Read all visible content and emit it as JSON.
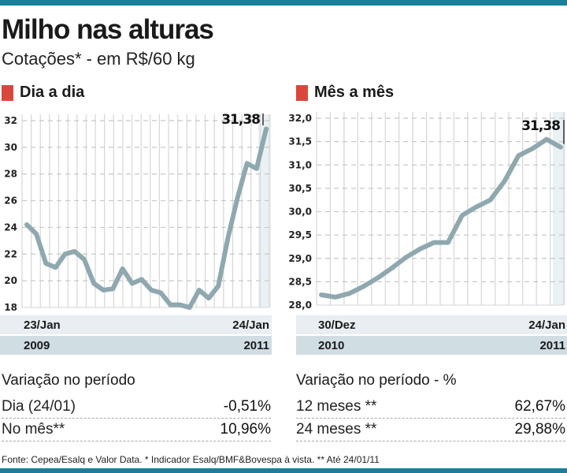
{
  "header": {
    "title": "Milho nas alturas",
    "subtitle": "Cotações* - em R$/60 kg"
  },
  "colors": {
    "accent_bar": "#1a7f9a",
    "section_square": "#d9473b",
    "line": "#8fa8b0",
    "highlight_column": "#eaf1f5"
  },
  "chart_data": [
    {
      "type": "line",
      "title": "Dia a dia",
      "xlabel": "",
      "ylabel": "",
      "ylim": [
        18,
        32
      ],
      "yticks": [
        "32",
        "30",
        "28",
        "26",
        "24",
        "22",
        "20",
        "18"
      ],
      "ytick_values": [
        32,
        30,
        28,
        26,
        24,
        22,
        20,
        18
      ],
      "grid": true,
      "x_start_label": "23/Jan",
      "x_end_label": "24/Jan",
      "x_start_year": "2009",
      "x_end_year": "2011",
      "annotation": "31,38",
      "series": [
        {
          "name": "Cotação",
          "values": [
            24.2,
            23.5,
            21.3,
            21.0,
            22.0,
            22.2,
            21.6,
            19.8,
            19.3,
            19.4,
            20.9,
            19.8,
            20.1,
            19.3,
            19.1,
            18.2,
            18.2,
            18.0,
            19.3,
            18.7,
            19.6,
            23.2,
            26.2,
            28.8,
            28.4,
            31.38
          ]
        }
      ]
    },
    {
      "type": "line",
      "title": "Mês a mês",
      "xlabel": "",
      "ylabel": "",
      "ylim": [
        28.0,
        32.0
      ],
      "yticks": [
        "32,0",
        "31,5",
        "31,0",
        "30,5",
        "30,0",
        "29,5",
        "29,0",
        "28,5",
        "28,0"
      ],
      "ytick_values": [
        32.0,
        31.5,
        31.0,
        30.5,
        30.0,
        29.5,
        29.0,
        28.5,
        28.0
      ],
      "grid": true,
      "x_start_label": "30/Dez",
      "x_end_label": "24/Jan",
      "x_start_year": "2010",
      "x_end_year": "2011",
      "annotation": "31,38",
      "series": [
        {
          "name": "Cotação",
          "values": [
            28.22,
            28.17,
            28.25,
            28.4,
            28.58,
            28.79,
            29.02,
            29.2,
            29.34,
            29.34,
            29.92,
            30.1,
            30.25,
            30.65,
            31.2,
            31.35,
            31.55,
            31.38
          ]
        }
      ]
    }
  ],
  "variation_left": {
    "title": "Variação no período",
    "rows": [
      {
        "label": "Dia (24/01)",
        "value": "-0,51%"
      },
      {
        "label": "No mês**",
        "value": "10,96%"
      }
    ]
  },
  "variation_right": {
    "title": "Variação no período - %",
    "rows": [
      {
        "label": "12 meses **",
        "value": "62,67%"
      },
      {
        "label": "24 meses **",
        "value": "29,88%"
      }
    ]
  },
  "footer": {
    "source": "Fonte: Cepea/Esalq e Valor Data. * Indicador Esalq/BMF&Bovespa à vista. ** Até 24/01/11"
  }
}
